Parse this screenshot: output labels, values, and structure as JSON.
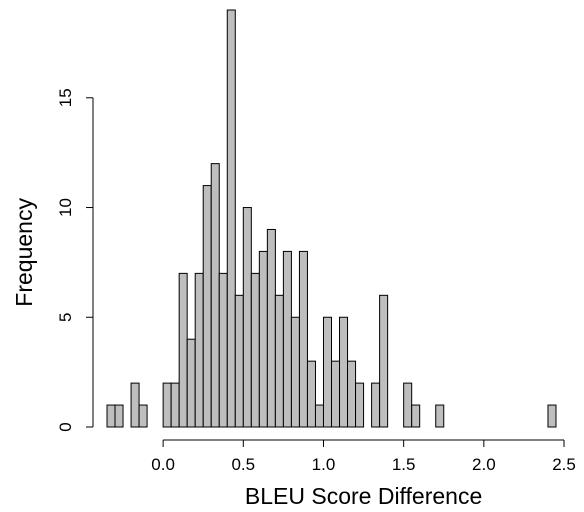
{
  "chart_data": {
    "type": "bar",
    "subtype": "histogram",
    "title": "",
    "xlabel": "BLEU Score Difference",
    "ylabel": "Frequency",
    "xlim": [
      -0.35,
      2.45
    ],
    "ylim": [
      0,
      19
    ],
    "x_ticks": [
      0.0,
      0.5,
      1.0,
      1.5,
      2.0,
      2.5
    ],
    "x_tick_labels": [
      "0.0",
      "0.5",
      "1.0",
      "1.5",
      "2.0",
      "2.5"
    ],
    "y_ticks": [
      0,
      5,
      10,
      15
    ],
    "y_tick_labels": [
      "0",
      "5",
      "10",
      "15"
    ],
    "bin_width": 0.05,
    "bins_start": [
      -0.35,
      -0.3,
      -0.25,
      -0.2,
      -0.15,
      -0.1,
      -0.05,
      0.0,
      0.05,
      0.1,
      0.15,
      0.2,
      0.25,
      0.3,
      0.35,
      0.4,
      0.45,
      0.5,
      0.55,
      0.6,
      0.65,
      0.7,
      0.75,
      0.8,
      0.85,
      0.9,
      0.95,
      1.0,
      1.05,
      1.1,
      1.15,
      1.2,
      1.25,
      1.3,
      1.35,
      1.4,
      1.45,
      1.5,
      1.55,
      1.6,
      1.65,
      1.7,
      1.75,
      1.8,
      1.85,
      1.9,
      1.95,
      2.0,
      2.05,
      2.1,
      2.15,
      2.2,
      2.25,
      2.3,
      2.35,
      2.4
    ],
    "values": [
      1,
      1,
      0,
      2,
      1,
      0,
      0,
      2,
      2,
      7,
      4,
      7,
      11,
      12,
      7,
      19,
      6,
      10,
      7,
      8,
      9,
      6,
      8,
      5,
      8,
      3,
      1,
      5,
      3,
      5,
      3,
      2,
      0,
      2,
      6,
      0,
      0,
      2,
      1,
      0,
      0,
      1,
      0,
      0,
      0,
      0,
      0,
      0,
      0,
      0,
      0,
      0,
      0,
      0,
      0,
      1
    ],
    "colors": {
      "bar_fill": "#bebebe",
      "bar_stroke": "#000000"
    },
    "grid": false,
    "legend": "none"
  }
}
